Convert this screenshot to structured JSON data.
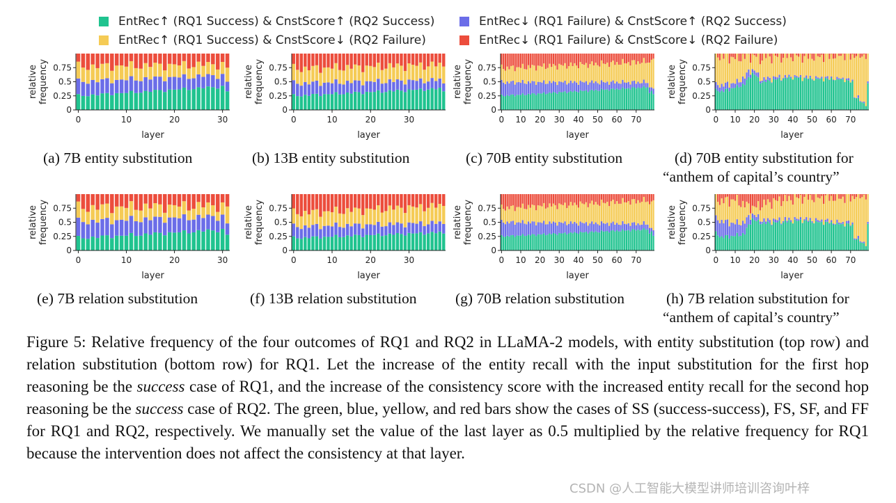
{
  "colors": {
    "SS": "#20c38f",
    "FS": "#6b6de8",
    "SF": "#f5cb55",
    "FF": "#ec4d3c"
  },
  "legend": [
    {
      "key": "SS",
      "label": "EntRec↑ (RQ1 Success) & CnstScore↑ (RQ2 Success)"
    },
    {
      "key": "FS",
      "label": "EntRec↓ (RQ1 Failure) & CnstScore↑ (RQ2 Success)"
    },
    {
      "key": "SF",
      "label": "EntRec↑ (RQ1 Success) & CnstScore↓ (RQ2 Failure)"
    },
    {
      "key": "FF",
      "label": "EntRec↓ (RQ1 Failure) & CnstScore↓ (RQ2 Failure)"
    }
  ],
  "chart_data": [
    {
      "type": "bar",
      "stacked": true,
      "caption": "(a) 7B entity substitution",
      "xlabel": "layer",
      "ylabel": "relative frequency",
      "ylim": [
        0,
        1
      ],
      "yticks": [
        "0",
        "0.25",
        "0.5",
        "0.75"
      ],
      "xticks": [
        0,
        10,
        20,
        30
      ],
      "n_layers": 32,
      "series": [
        {
          "key": "SS",
          "start": 0.25,
          "end": 0.42,
          "noise": 0.02,
          "tail": [
            0.33
          ]
        },
        {
          "key": "FS",
          "start": 0.25,
          "end": 0.2,
          "noise": 0.02,
          "tail": [
            0.17
          ]
        },
        {
          "key": "SF",
          "start": 0.27,
          "end": 0.19,
          "noise": 0.02,
          "tail": [
            0.25
          ]
        }
      ]
    },
    {
      "type": "bar",
      "stacked": true,
      "caption": "(b) 13B entity substitution",
      "xlabel": "layer",
      "ylabel": "relative frequency",
      "ylim": [
        0,
        1
      ],
      "yticks": [
        "0",
        "0.25",
        "0.5",
        "0.75"
      ],
      "xticks": [
        0,
        10,
        20,
        30
      ],
      "n_layers": 40,
      "series": [
        {
          "key": "SS",
          "start": 0.25,
          "end": 0.38,
          "noise": 0.02,
          "tail": [
            0.33
          ]
        },
        {
          "key": "FS",
          "start": 0.22,
          "end": 0.15,
          "noise": 0.02,
          "tail": [
            0.14
          ]
        },
        {
          "key": "SF",
          "start": 0.26,
          "end": 0.27,
          "noise": 0.02,
          "tail": [
            0.3
          ]
        }
      ]
    },
    {
      "type": "bar",
      "stacked": true,
      "caption": "(c) 70B entity substitution",
      "xlabel": "layer",
      "ylabel": "relative frequency",
      "ylim": [
        0,
        1
      ],
      "yticks": [
        "0",
        "0.25",
        "0.5",
        "0.75"
      ],
      "xticks": [
        0,
        10,
        20,
        30,
        40,
        50,
        60,
        70
      ],
      "n_layers": 80,
      "series": [
        {
          "key": "SS",
          "start": 0.25,
          "end": 0.41,
          "noise": 0.015,
          "tail": [
            0.3,
            0.34,
            0.28
          ]
        },
        {
          "key": "FS",
          "start": 0.24,
          "end": 0.08,
          "noise": 0.015,
          "tail": [
            0.1,
            0.06,
            0.1
          ]
        },
        {
          "key": "SF",
          "start": 0.25,
          "end": 0.37,
          "noise": 0.015,
          "tail": [
            0.44,
            0.49,
            0.53
          ]
        }
      ]
    },
    {
      "type": "bar",
      "stacked": true,
      "caption": "(d) 70B entity substitution for",
      "caption2": "“anthem of capital’s country”",
      "xlabel": "layer",
      "ylabel": "relative frequency",
      "ylim": [
        0,
        1
      ],
      "yticks": [
        "0",
        "0.25",
        "0.5",
        "0.75"
      ],
      "xticks": [
        0,
        10,
        20,
        30,
        40,
        50,
        60,
        70
      ],
      "n_layers": 80,
      "series": [
        {
          "key": "SS",
          "points": [
            [
              0,
              0.36
            ],
            [
              3,
              0.33
            ],
            [
              10,
              0.4
            ],
            [
              15,
              0.46
            ],
            [
              17,
              0.57
            ],
            [
              19,
              0.65
            ],
            [
              21,
              0.6
            ],
            [
              23,
              0.5
            ],
            [
              27,
              0.51
            ],
            [
              33,
              0.55
            ],
            [
              40,
              0.58
            ],
            [
              45,
              0.56
            ],
            [
              55,
              0.55
            ],
            [
              65,
              0.55
            ],
            [
              71,
              0.5
            ],
            [
              72,
              0.24
            ],
            [
              75,
              0.16
            ],
            [
              78,
              0.1
            ],
            [
              79,
              0.47
            ]
          ],
          "noise": 0.03
        },
        {
          "key": "FS",
          "points": [
            [
              0,
              0.1
            ],
            [
              3,
              0.11
            ],
            [
              10,
              0.08
            ],
            [
              15,
              0.12
            ],
            [
              17,
              0.12
            ],
            [
              19,
              0.06
            ],
            [
              21,
              0.07
            ],
            [
              25,
              0.05
            ],
            [
              40,
              0.02
            ],
            [
              60,
              0.02
            ],
            [
              71,
              0.02
            ],
            [
              72,
              0.02
            ],
            [
              79,
              0.02
            ]
          ],
          "noise": 0.02
        },
        {
          "key": "SF",
          "points": [
            [
              0,
              0.5
            ],
            [
              3,
              0.52
            ],
            [
              10,
              0.44
            ],
            [
              15,
              0.36
            ],
            [
              17,
              0.27
            ],
            [
              19,
              0.25
            ],
            [
              21,
              0.28
            ],
            [
              25,
              0.4
            ],
            [
              33,
              0.36
            ],
            [
              40,
              0.36
            ],
            [
              60,
              0.39
            ],
            [
              71,
              0.44
            ],
            [
              72,
              0.72
            ],
            [
              78,
              0.86
            ],
            [
              79,
              0.49
            ]
          ],
          "noise": 0.03
        }
      ]
    },
    {
      "type": "bar",
      "stacked": true,
      "caption": "(e) 7B relation substitution",
      "xlabel": "layer",
      "ylabel": "relative frequency",
      "ylim": [
        0,
        1
      ],
      "yticks": [
        "0",
        "0.25",
        "0.5",
        "0.75"
      ],
      "xticks": [
        0,
        10,
        20,
        30
      ],
      "n_layers": 32,
      "series": [
        {
          "key": "SS",
          "start": 0.22,
          "end": 0.37,
          "noise": 0.025,
          "tail": [
            0.28
          ]
        },
        {
          "key": "FS",
          "start": 0.29,
          "end": 0.24,
          "noise": 0.025,
          "tail": [
            0.2
          ]
        },
        {
          "key": "SF",
          "start": 0.25,
          "end": 0.19,
          "noise": 0.025,
          "tail": [
            0.3
          ]
        }
      ]
    },
    {
      "type": "bar",
      "stacked": true,
      "caption": "(f) 13B relation substitution",
      "xlabel": "layer",
      "ylabel": "relative frequency",
      "ylim": [
        0,
        1
      ],
      "yticks": [
        "0",
        "0.25",
        "0.5",
        "0.75"
      ],
      "xticks": [
        0,
        10,
        20,
        30
      ],
      "n_layers": 40,
      "series": [
        {
          "key": "SS",
          "start": 0.22,
          "end": 0.32,
          "noise": 0.02,
          "tail": [
            0.3
          ]
        },
        {
          "key": "FS",
          "start": 0.2,
          "end": 0.17,
          "noise": 0.02,
          "tail": [
            0.17
          ]
        },
        {
          "key": "SF",
          "start": 0.24,
          "end": 0.3,
          "noise": 0.02,
          "tail": [
            0.32
          ]
        }
      ]
    },
    {
      "type": "bar",
      "stacked": true,
      "caption": "(g) 70B relation substitution",
      "xlabel": "layer",
      "ylabel": "relative frequency",
      "ylim": [
        0,
        1
      ],
      "yticks": [
        "0",
        "0.25",
        "0.5",
        "0.75"
      ],
      "xticks": [
        0,
        10,
        20,
        30,
        40,
        50,
        60,
        70
      ],
      "n_layers": 80,
      "series": [
        {
          "key": "SS",
          "start": 0.25,
          "end": 0.38,
          "noise": 0.015,
          "tail": [
            0.3,
            0.34,
            0.26
          ]
        },
        {
          "key": "FS",
          "start": 0.25,
          "end": 0.09,
          "noise": 0.015,
          "tail": [
            0.1,
            0.06,
            0.1
          ]
        },
        {
          "key": "SF",
          "start": 0.25,
          "end": 0.42,
          "noise": 0.015,
          "tail": [
            0.42,
            0.47,
            0.53
          ]
        }
      ]
    },
    {
      "type": "bar",
      "stacked": true,
      "caption": "(h) 7B relation substitution for",
      "caption2": "“anthem of capital’s country”",
      "xlabel": "layer",
      "ylabel": "relative frequency",
      "ylim": [
        0,
        1
      ],
      "yticks": [
        "0",
        "0.25",
        "0.5",
        "0.75"
      ],
      "xticks": [
        0,
        10,
        20,
        30,
        40,
        50,
        60,
        70
      ],
      "n_layers": 80,
      "series": [
        {
          "key": "SS",
          "points": [
            [
              0,
              0.3
            ],
            [
              3,
              0.24
            ],
            [
              10,
              0.26
            ],
            [
              15,
              0.3
            ],
            [
              17,
              0.45
            ],
            [
              19,
              0.56
            ],
            [
              21,
              0.52
            ],
            [
              25,
              0.48
            ],
            [
              33,
              0.5
            ],
            [
              40,
              0.52
            ],
            [
              45,
              0.53
            ],
            [
              55,
              0.5
            ],
            [
              65,
              0.47
            ],
            [
              71,
              0.45
            ],
            [
              72,
              0.22
            ],
            [
              75,
              0.16
            ],
            [
              78,
              0.11
            ],
            [
              79,
              0.47
            ]
          ],
          "noise": 0.03
        },
        {
          "key": "FS",
          "points": [
            [
              0,
              0.26
            ],
            [
              3,
              0.28
            ],
            [
              10,
              0.22
            ],
            [
              15,
              0.2
            ],
            [
              17,
              0.15
            ],
            [
              19,
              0.08
            ],
            [
              21,
              0.08
            ],
            [
              25,
              0.05
            ],
            [
              40,
              0.03
            ],
            [
              60,
              0.03
            ],
            [
              71,
              0.03
            ],
            [
              72,
              0.03
            ],
            [
              79,
              0.02
            ]
          ],
          "noise": 0.02
        },
        {
          "key": "SF",
          "points": [
            [
              0,
              0.34
            ],
            [
              3,
              0.36
            ],
            [
              10,
              0.42
            ],
            [
              15,
              0.3
            ],
            [
              17,
              0.2
            ],
            [
              19,
              0.12
            ],
            [
              21,
              0.17
            ],
            [
              25,
              0.3
            ],
            [
              33,
              0.35
            ],
            [
              40,
              0.37
            ],
            [
              60,
              0.42
            ],
            [
              71,
              0.46
            ],
            [
              72,
              0.72
            ],
            [
              78,
              0.85
            ],
            [
              79,
              0.49
            ]
          ],
          "noise": 0.03
        }
      ]
    }
  ],
  "figure_caption": {
    "p1": "Figure 5: Relative frequency of the four outcomes of RQ1 and RQ2 in LLaMA-2 models, with entity substitution (top row) and relation substitution (bottom row) for RQ1. Let the increase of the entity recall with the input substitution for the first hop reasoning be the ",
    "em1": "success",
    "p2": " case of RQ1, and the increase of the consistency score with the increased entity recall for the second hop reasoning be the ",
    "em2": "success",
    "p3": " case of RQ2. The green, blue, yellow, and red bars show the cases of SS (success-success), FS, SF, and FF for RQ1 and RQ2, respectively. We manually set the value of the last layer as 0.5 multiplied by the relative frequency for RQ1 because the intervention does not affect the consistency at that layer."
  },
  "watermark": "CSDN @人工智能大模型讲师培训咨询叶梓"
}
